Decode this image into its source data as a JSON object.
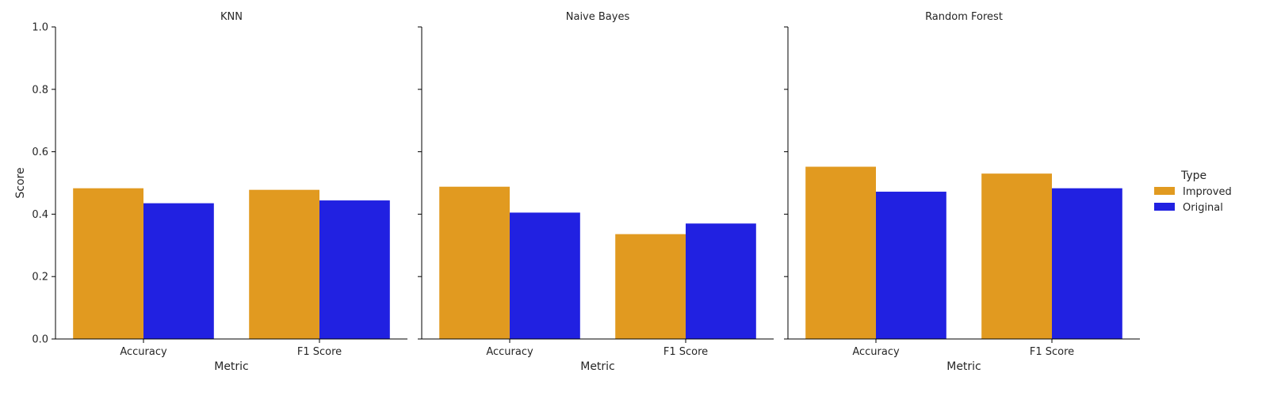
{
  "chart_data": {
    "type": "bar",
    "categories": [
      "Accuracy",
      "F1 Score"
    ],
    "xlabel": "Metric",
    "ylabel": "Score",
    "ylim": [
      0,
      1
    ],
    "yticks": [
      0.0,
      0.2,
      0.4,
      0.6,
      0.8,
      1.0
    ],
    "ytick_labels": [
      "0.0",
      "0.2",
      "0.4",
      "0.6",
      "0.8",
      "1.0"
    ],
    "legend": {
      "title": "Type",
      "placement": "right",
      "entries": [
        {
          "name": "Improved",
          "color": "#e19a20"
        },
        {
          "name": "Original",
          "color": "#2121e1"
        }
      ]
    },
    "panels": [
      {
        "title": "KNN",
        "series": [
          {
            "name": "Improved",
            "values": [
              0.483,
              0.478
            ]
          },
          {
            "name": "Original",
            "values": [
              0.435,
              0.444
            ]
          }
        ]
      },
      {
        "title": "Naive Bayes",
        "series": [
          {
            "name": "Improved",
            "values": [
              0.488,
              0.336
            ]
          },
          {
            "name": "Original",
            "values": [
              0.405,
              0.37
            ]
          }
        ]
      },
      {
        "title": "Random Forest",
        "series": [
          {
            "name": "Improved",
            "values": [
              0.552,
              0.53
            ]
          },
          {
            "name": "Original",
            "values": [
              0.472,
              0.483
            ]
          }
        ]
      }
    ]
  }
}
